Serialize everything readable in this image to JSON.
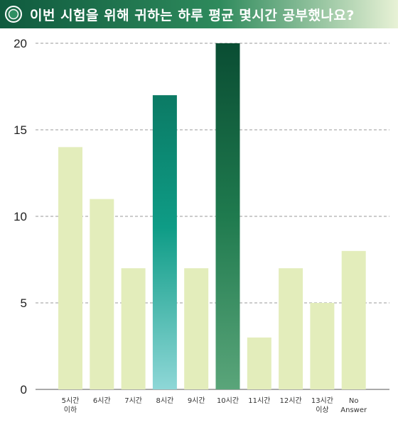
{
  "header": {
    "title": "이번 시험을 위해 귀하는 하루 평균 몇시간 공부했나요?",
    "icon": "circle-icon"
  },
  "colors": {
    "header_start": "#0f5a3e",
    "header_end": "#e8f2d6",
    "plain_bar": "#e3edbb",
    "highlight_8h_top": "#0b7a64",
    "highlight_8h_mid": "#0e9c86",
    "highlight_8h_bottom": "#8ed7d7",
    "highlight_10h_top": "#0a4d33",
    "highlight_10h_bottom": "#5aa57a",
    "gridline": "#9a9a9a"
  },
  "chart_data": {
    "type": "bar",
    "categories": [
      [
        "5시간",
        "이하"
      ],
      [
        "6시간"
      ],
      [
        "7시간"
      ],
      [
        "8시간"
      ],
      [
        "9시간"
      ],
      [
        "10시간"
      ],
      [
        "11시간"
      ],
      [
        "12시간"
      ],
      [
        "13시간",
        "이상"
      ],
      [
        "No",
        "Answer"
      ]
    ],
    "values": [
      14,
      11,
      7,
      17,
      7,
      20,
      3,
      7,
      5,
      8
    ],
    "highlight": [
      "",
      "",
      "",
      "teal",
      "",
      "green",
      "",
      "",
      "",
      ""
    ],
    "title": "이번 시험을 위해 귀하는 하루 평균 몇시간 공부했나요?",
    "xlabel": "",
    "ylabel": "",
    "ylim": [
      0,
      20
    ],
    "yticks": [
      0,
      5,
      10,
      15,
      20
    ],
    "grid": true
  }
}
